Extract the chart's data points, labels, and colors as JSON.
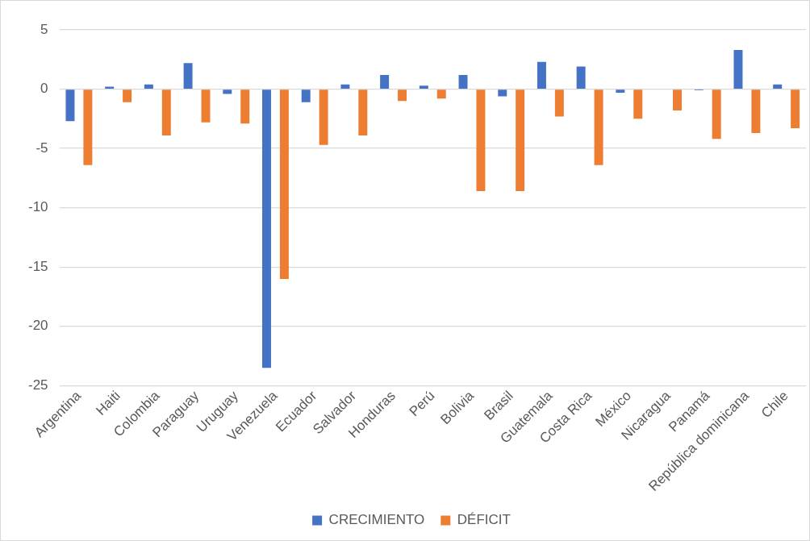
{
  "chart_data": {
    "type": "bar",
    "categories": [
      "Argentina",
      "Haiti",
      "Colombia",
      "Paraguay",
      "Uruguay",
      "Venezuela",
      "Ecuador",
      "Salvador",
      "Honduras",
      "Perú",
      "Bolivia",
      "Brasil",
      "Guatemala",
      "Costa Rica",
      "México",
      "Nicaragua",
      "Panamá",
      "República dominicana",
      "Chile"
    ],
    "series": [
      {
        "name": "CRECIMIENTO",
        "color": "#4472c4",
        "values": [
          -2.7,
          0.2,
          0.4,
          2.2,
          -0.4,
          -23.5,
          -1.1,
          0.4,
          1.2,
          0.3,
          1.2,
          -0.6,
          2.3,
          1.9,
          -0.3,
          0,
          -0.1,
          3.3,
          0.4
        ]
      },
      {
        "name": "DÉFICIT",
        "color": "#ed7d31",
        "values": [
          -6.4,
          -1.1,
          -3.9,
          -2.8,
          -2.9,
          -16,
          -4.7,
          -3.9,
          -1,
          -0.8,
          -8.6,
          -8.6,
          -2.3,
          -6.4,
          -2.5,
          -1.8,
          -4.2,
          -3.7,
          -3.3
        ]
      }
    ],
    "ylim": [
      -25,
      5
    ],
    "yticks": [
      5,
      0,
      -5,
      -10,
      -15,
      -20,
      -25
    ],
    "grid": "y",
    "legend": "bottom"
  }
}
